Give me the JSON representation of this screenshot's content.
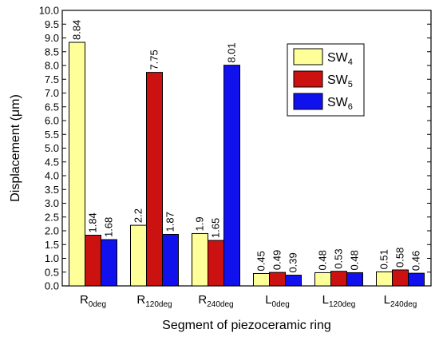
{
  "chart_data": {
    "type": "bar",
    "xlabel": "Segment of piezoceramic ring",
    "ylabel": "Displacement (μm)",
    "ylim": [
      0,
      10
    ],
    "y_ticks": [
      "0.0",
      "0.5",
      "1.0",
      "1.5",
      "2.0",
      "2.5",
      "3.0",
      "3.5",
      "4.0",
      "4.5",
      "5.0",
      "5.5",
      "6.0",
      "6.5",
      "7.0",
      "7.5",
      "8.0",
      "8.5",
      "9.0",
      "9.5",
      "10.0"
    ],
    "categories": [
      {
        "main": "R",
        "sub": "0deg"
      },
      {
        "main": "R",
        "sub": "120deg"
      },
      {
        "main": "R",
        "sub": "240deg"
      },
      {
        "main": "L",
        "sub": "0deg"
      },
      {
        "main": "L",
        "sub": "120deg"
      },
      {
        "main": "L",
        "sub": "240deg"
      }
    ],
    "series": [
      {
        "name": "SW",
        "sub": "4",
        "color": "#ffff99",
        "values": [
          8.84,
          2.2,
          1.9,
          0.45,
          0.48,
          0.51
        ],
        "labels": [
          "8.84",
          "2.2",
          "1.9",
          "0.45",
          "0.48",
          "0.51"
        ]
      },
      {
        "name": "SW",
        "sub": "5",
        "color": "#cc1111",
        "values": [
          1.84,
          7.75,
          1.65,
          0.49,
          0.53,
          0.58
        ],
        "labels": [
          "1.84",
          "7.75",
          "1.65",
          "0.49",
          "0.53",
          "0.58"
        ]
      },
      {
        "name": "SW",
        "sub": "6",
        "color": "#1111ee",
        "values": [
          1.68,
          1.87,
          8.01,
          0.39,
          0.48,
          0.46
        ],
        "labels": [
          "1.68",
          "1.87",
          "8.01",
          "0.39",
          "0.48",
          "0.46"
        ]
      }
    ],
    "legend_position": "top-right"
  }
}
